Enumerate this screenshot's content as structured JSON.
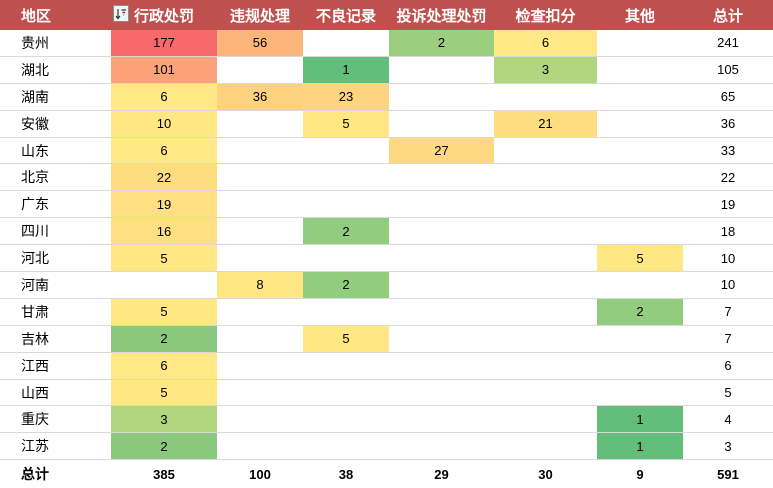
{
  "header": {
    "region_label": "地区",
    "columns": [
      "行政处罚",
      "违规处理",
      "不良记录",
      "投诉处理处罚",
      "检查扣分",
      "其他"
    ],
    "total_label": "总计",
    "filter_icon": "sort-filter-icon"
  },
  "rows": [
    {
      "region": "贵州",
      "values": [
        "177",
        "56",
        "",
        "2",
        "6",
        ""
      ],
      "total": "241"
    },
    {
      "region": "湖北",
      "values": [
        "101",
        "",
        "1",
        "",
        "3",
        ""
      ],
      "total": "105"
    },
    {
      "region": "湖南",
      "values": [
        "6",
        "36",
        "23",
        "",
        "",
        ""
      ],
      "total": "65"
    },
    {
      "region": "安徽",
      "values": [
        "10",
        "",
        "5",
        "",
        "21",
        ""
      ],
      "total": "36"
    },
    {
      "region": "山东",
      "values": [
        "6",
        "",
        "",
        "27",
        "",
        ""
      ],
      "total": "33"
    },
    {
      "region": "北京",
      "values": [
        "22",
        "",
        "",
        "",
        "",
        ""
      ],
      "total": "22"
    },
    {
      "region": "广东",
      "values": [
        "19",
        "",
        "",
        "",
        "",
        ""
      ],
      "total": "19"
    },
    {
      "region": "四川",
      "values": [
        "16",
        "",
        "2",
        "",
        "",
        ""
      ],
      "total": "18"
    },
    {
      "region": "河北",
      "values": [
        "5",
        "",
        "",
        "",
        "",
        "5"
      ],
      "total": "10"
    },
    {
      "region": "河南",
      "values": [
        "",
        "8",
        "2",
        "",
        "",
        ""
      ],
      "total": "10"
    },
    {
      "region": "甘肃",
      "values": [
        "5",
        "",
        "",
        "",
        "",
        "2"
      ],
      "total": "7"
    },
    {
      "region": "吉林",
      "values": [
        "2",
        "",
        "5",
        "",
        "",
        ""
      ],
      "total": "7"
    },
    {
      "region": "江西",
      "values": [
        "6",
        "",
        "",
        "",
        "",
        ""
      ],
      "total": "6"
    },
    {
      "region": "山西",
      "values": [
        "5",
        "",
        "",
        "",
        "",
        ""
      ],
      "total": "5"
    },
    {
      "region": "重庆",
      "values": [
        "3",
        "",
        "",
        "",
        "",
        "1"
      ],
      "total": "4"
    },
    {
      "region": "江苏",
      "values": [
        "2",
        "",
        "",
        "",
        "",
        "1"
      ],
      "total": "3"
    }
  ],
  "cell_colors": [
    [
      "#f8696b",
      "#fbb57a",
      null,
      "#9bcf7f",
      "#ffe885",
      null
    ],
    [
      "#fba27a",
      null,
      "#63be7b",
      null,
      "#b1d67f",
      null
    ],
    [
      "#ffe885",
      "#fdd17f",
      "#fdd47f",
      null,
      null,
      null
    ],
    [
      "#ffe883",
      null,
      "#ffe883",
      null,
      "#fedd81",
      null
    ],
    [
      "#ffe885",
      null,
      null,
      "#ffd981",
      null,
      null
    ],
    [
      "#fedd81",
      null,
      null,
      null,
      null,
      null
    ],
    [
      "#fee082",
      null,
      null,
      null,
      null,
      null
    ],
    [
      "#fee082",
      null,
      "#92cc7e",
      null,
      null,
      null
    ],
    [
      "#ffe883",
      null,
      null,
      null,
      null,
      "#ffe883"
    ],
    [
      null,
      "#ffe883",
      "#92cc7e",
      null,
      null,
      null
    ],
    [
      "#ffe883",
      null,
      null,
      null,
      null,
      "#92cc7e"
    ],
    [
      "#8ac97d",
      null,
      "#ffe883",
      null,
      null,
      null
    ],
    [
      "#ffe885",
      null,
      null,
      null,
      null,
      null
    ],
    [
      "#ffe883",
      null,
      null,
      null,
      null,
      null
    ],
    [
      "#b1d67f",
      null,
      null,
      null,
      null,
      "#63be7b"
    ],
    [
      "#8ac97d",
      null,
      null,
      null,
      null,
      "#63be7b"
    ]
  ],
  "footer": {
    "label": "总计",
    "values": [
      "385",
      "100",
      "38",
      "29",
      "30",
      "9"
    ],
    "total": "591"
  },
  "theme": {
    "header_bg": "#c0504d",
    "header_text": "#ffffff"
  }
}
